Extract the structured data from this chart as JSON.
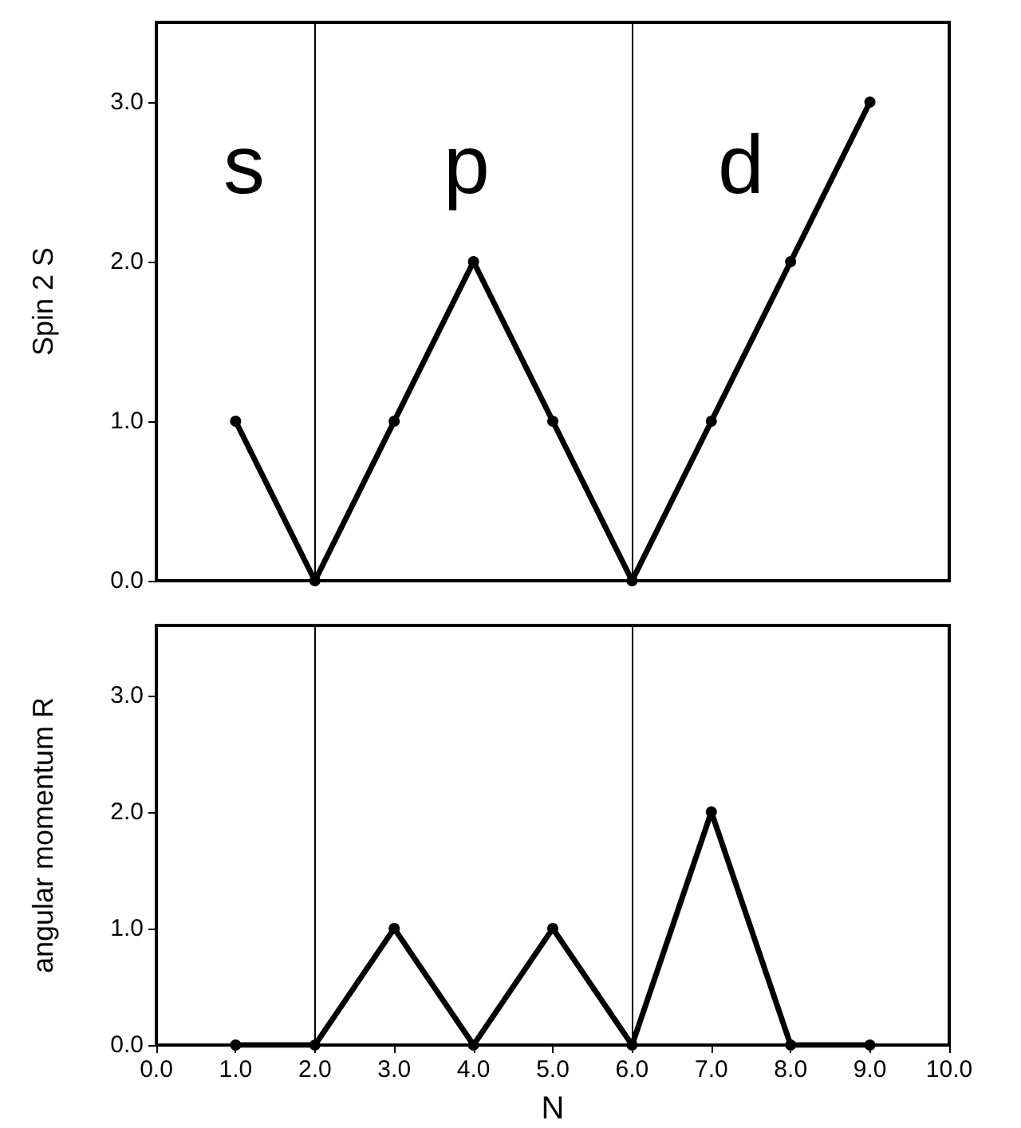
{
  "chart_data": [
    {
      "type": "line",
      "ylabel": "Spin 2 S",
      "x": [
        1,
        2,
        3,
        4,
        5,
        6,
        7,
        8,
        9
      ],
      "series": [
        {
          "color": "#000000",
          "values": [
            1,
            0,
            1,
            2,
            1,
            0,
            1,
            2,
            3
          ]
        }
      ],
      "xlim": [
        0,
        10
      ],
      "ylim": [
        0,
        3.5
      ],
      "yticks": [
        {
          "value": 0,
          "label": "0.0"
        },
        {
          "value": 1,
          "label": "1.0"
        },
        {
          "value": 2,
          "label": "2.0"
        },
        {
          "value": 3,
          "label": "3.0"
        }
      ],
      "tick_labels": "y",
      "marker": "circle",
      "line_style": "solid",
      "ref_lines": [
        {
          "axis": "x",
          "value": 2,
          "color": "#000000"
        },
        {
          "axis": "x",
          "value": 6,
          "color": "#000000"
        }
      ],
      "annotations": [
        "s",
        "p",
        "d"
      ]
    },
    {
      "type": "line",
      "ylabel": "angular momentum R",
      "xlabel": "N",
      "x": [
        1,
        2,
        3,
        4,
        5,
        6,
        7,
        8,
        9
      ],
      "series": [
        {
          "color": "#000000",
          "values": [
            0,
            0,
            1,
            0,
            1,
            0,
            2,
            0,
            0
          ]
        }
      ],
      "xlim": [
        0,
        10
      ],
      "ylim": [
        0,
        3.6
      ],
      "xticks": [
        {
          "value": 0,
          "label": "0.0"
        },
        {
          "value": 1,
          "label": "1.0"
        },
        {
          "value": 2,
          "label": "2.0"
        },
        {
          "value": 3,
          "label": "3.0"
        },
        {
          "value": 4,
          "label": "4.0"
        },
        {
          "value": 5,
          "label": "5.0"
        },
        {
          "value": 6,
          "label": "6.0"
        },
        {
          "value": 7,
          "label": "7.0"
        },
        {
          "value": 8,
          "label": "8.0"
        },
        {
          "value": 9,
          "label": "9.0"
        },
        {
          "value": 10,
          "label": "10.0"
        }
      ],
      "yticks": [
        {
          "value": 0,
          "label": "0.0"
        },
        {
          "value": 1,
          "label": "1.0"
        },
        {
          "value": 2,
          "label": "2.0"
        },
        {
          "value": 3,
          "label": "3.0"
        }
      ],
      "marker": "circle",
      "line_style": "solid",
      "ref_lines": [
        {
          "axis": "x",
          "value": 2,
          "color": "#000000"
        },
        {
          "axis": "x",
          "value": 6,
          "color": "#000000"
        }
      ]
    }
  ]
}
